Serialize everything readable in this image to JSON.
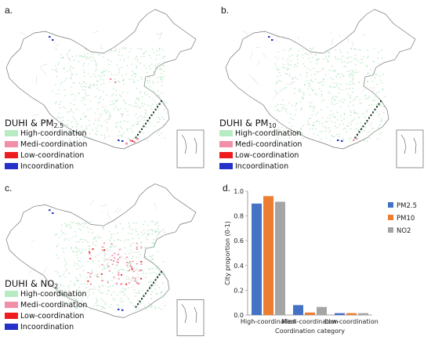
{
  "panels": [
    {
      "label": "a.",
      "title_prefix": "DUHI & PM",
      "title_sub": "2.5",
      "pollutant": "pm25"
    },
    {
      "label": "b.",
      "title_prefix": "DUHI & PM",
      "title_sub": "10",
      "pollutant": "pm10"
    },
    {
      "label": "c.",
      "title_prefix": "DUHI & NO",
      "title_sub": "2",
      "pollutant": "no2"
    }
  ],
  "legend": [
    {
      "label": "High-coordination",
      "color": "#b7ecc3"
    },
    {
      "label": "Medi-coordination",
      "color": "#f08fa7"
    },
    {
      "label": "Low-coordination",
      "color": "#ee1c1c"
    },
    {
      "label": "Incoordination",
      "color": "#2430c8"
    }
  ],
  "chart_label": "d.",
  "chart_data": {
    "type": "bar",
    "categories": [
      "High-coordination",
      "Medi-coordination",
      "Low-coordination"
    ],
    "series": [
      {
        "name": "PM2.5",
        "color": "#4472c4",
        "values": [
          0.9,
          0.08,
          0.015
        ]
      },
      {
        "name": "PM10",
        "color": "#ed7d31",
        "values": [
          0.96,
          0.02,
          0.015
        ]
      },
      {
        "name": "NO2",
        "color": "#a5a5a5",
        "values": [
          0.915,
          0.065,
          0.015
        ]
      }
    ],
    "xlabel": "Coordination category",
    "ylabel": "City proportion (0-1)",
    "ylim": [
      0,
      1.0
    ],
    "yticks": [
      "0.0",
      "0.2",
      "0.4",
      "0.6",
      "0.8",
      "1.0"
    ],
    "legend_position": "right"
  }
}
